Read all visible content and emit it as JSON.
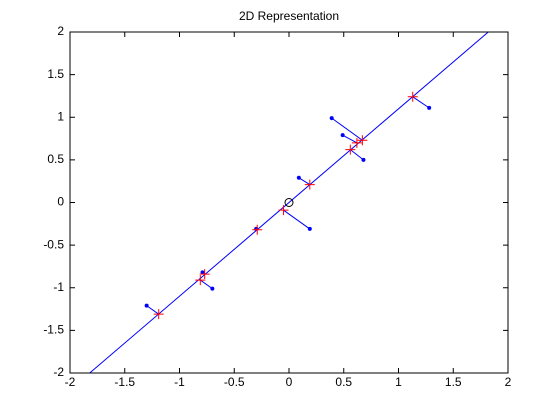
{
  "chart_data": {
    "type": "scatter",
    "title": "2D Representation",
    "xlim": [
      -2,
      2
    ],
    "ylim": [
      -2,
      2
    ],
    "xticks": [
      -2,
      -1.5,
      -1,
      -0.5,
      0,
      0.5,
      1,
      1.5,
      2
    ],
    "yticks": [
      -2,
      -1.5,
      -1,
      -0.5,
      0,
      0.5,
      1,
      1.5,
      2
    ],
    "series": [
      {
        "color": "#0000ff",
        "marker": "dot",
        "x": [
          -1.3,
          -0.7,
          -0.79,
          -0.3,
          0.19,
          0.09,
          0.39,
          0.49,
          0.68,
          1.28
        ],
        "y": [
          -1.21,
          -1.01,
          -0.82,
          -0.31,
          -0.31,
          0.29,
          0.99,
          0.79,
          0.5,
          1.11
        ]
      },
      {
        "color": "#ff0000",
        "marker": "plus",
        "x": [
          -1.19,
          -0.81,
          -0.77,
          -0.29,
          -0.05,
          0.19,
          0.67,
          0.62,
          0.56,
          1.13
        ],
        "y": [
          -1.31,
          -0.91,
          -0.84,
          -0.32,
          -0.09,
          0.21,
          0.73,
          0.7,
          0.62,
          1.24
        ]
      },
      {
        "color": "#0000ff",
        "marker": "line",
        "x": [
          -1.82,
          1.82
        ],
        "y": [
          -2,
          2
        ]
      },
      {
        "color": "#000000",
        "marker": "circle",
        "x": [
          0
        ],
        "y": [
          0
        ]
      }
    ],
    "connect": [
      0,
      1
    ]
  }
}
